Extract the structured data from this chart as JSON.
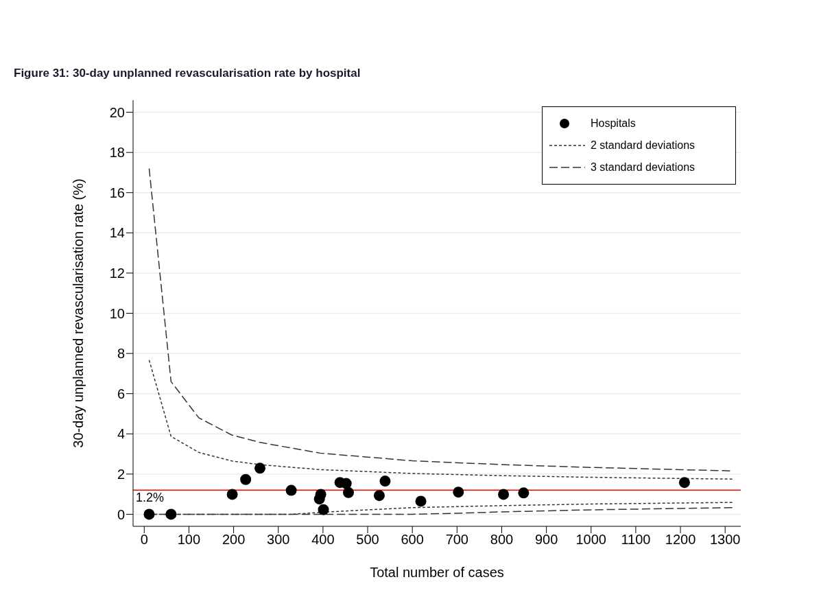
{
  "chart_data": {
    "type": "scatter",
    "title": "Figure 31: 30-day unplanned revascularisation rate by hospital",
    "xlabel": "Total number of cases",
    "ylabel": "30-day unplanned revascularisation rate (%)",
    "xlim": [
      -25,
      1335
    ],
    "xticks": [
      0,
      100,
      200,
      300,
      400,
      500,
      600,
      700,
      800,
      900,
      1000,
      1100,
      1200,
      1300
    ],
    "ylim": [
      -0.6,
      20.6
    ],
    "yticks": [
      0,
      2,
      4,
      6,
      8,
      10,
      12,
      14,
      16,
      18,
      20
    ],
    "grid": "y",
    "legend": "top right",
    "ref_lines": [
      {
        "axis": "y",
        "value": 1.2,
        "label": "1.2%",
        "color": "#ff0000",
        "line_style": "solid"
      }
    ],
    "series": [
      {
        "name": "Hospitals",
        "color": "#000000",
        "marker": "circle",
        "x": [
          11,
          60,
          197,
          227,
          259,
          329,
          395,
          392,
          401,
          438,
          452,
          457,
          526,
          539,
          619,
          703,
          804,
          849,
          1209
        ],
        "values": [
          0,
          0,
          0.99,
          1.73,
          2.29,
          1.19,
          0.99,
          0.76,
          0.23,
          1.58,
          1.53,
          1.08,
          0.93,
          1.65,
          0.65,
          1.1,
          0.99,
          1.06,
          1.58
        ]
      },
      {
        "name": "2 standard deviations",
        "type": "line",
        "color": "#333333",
        "line_style": "dotted",
        "marker": "none",
        "x": [
          11,
          60,
          122,
          196,
          258,
          394,
          600,
          800,
          1000,
          1200,
          1316
        ],
        "values": [
          7.67,
          3.87,
          3.08,
          2.65,
          2.47,
          2.22,
          2.03,
          1.92,
          1.84,
          1.78,
          1.75
        ]
      },
      {
        "type": "line",
        "color": "#333333",
        "line_style": "dotted",
        "marker": "none",
        "x": [
          11,
          330,
          400,
          500,
          600,
          800,
          1000,
          1200,
          1316
        ],
        "values": [
          0,
          0,
          0.1,
          0.22,
          0.33,
          0.43,
          0.51,
          0.56,
          0.59
        ]
      },
      {
        "name": "3 standard deviations",
        "type": "line",
        "color": "#333333",
        "line_style": "dashed",
        "marker": "none",
        "x": [
          11,
          60,
          122,
          196,
          258,
          394,
          600,
          800,
          1000,
          1200,
          1311
        ],
        "values": [
          17.2,
          6.6,
          4.8,
          3.94,
          3.58,
          3.04,
          2.66,
          2.47,
          2.33,
          2.22,
          2.16
        ]
      },
      {
        "type": "line",
        "color": "#333333",
        "line_style": "dashed",
        "marker": "none",
        "x": [
          11,
          600,
          700,
          800,
          1000,
          1200,
          1316
        ],
        "values": [
          0,
          0,
          0.05,
          0.12,
          0.22,
          0.29,
          0.33
        ]
      }
    ]
  }
}
